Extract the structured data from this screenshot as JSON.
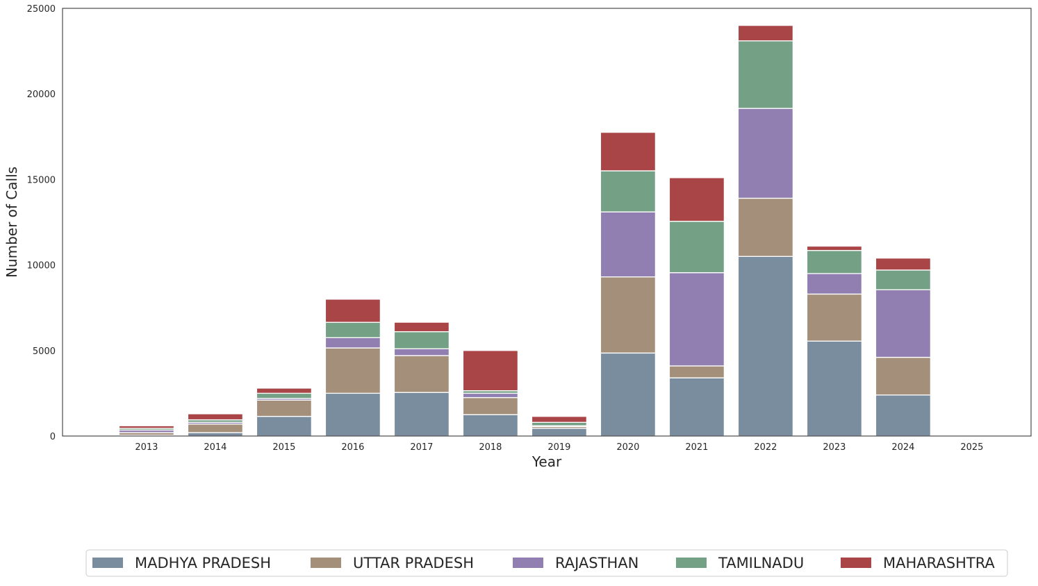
{
  "chart_data": {
    "type": "bar",
    "stacked": true,
    "title": "",
    "xlabel": "Year",
    "ylabel": "Number of Calls",
    "ylim": [
      0,
      25000
    ],
    "yticks": [
      0,
      5000,
      10000,
      15000,
      20000,
      25000
    ],
    "grid": false,
    "legend_position": "bottom",
    "categories": [
      "2013",
      "2014",
      "2015",
      "2016",
      "2017",
      "2018",
      "2019",
      "2020",
      "2021",
      "2022",
      "2023",
      "2024",
      "2025"
    ],
    "series": [
      {
        "name": "MADHYA PRADESH",
        "color": "#7a8d9f",
        "values": [
          50,
          200,
          1150,
          2500,
          2550,
          1250,
          450,
          4850,
          3400,
          10500,
          5550,
          2400,
          0
        ]
      },
      {
        "name": "UTTAR PRADESH",
        "color": "#a48f7a",
        "values": [
          150,
          500,
          950,
          2650,
          2150,
          1000,
          100,
          4450,
          700,
          3400,
          2750,
          2200,
          0
        ]
      },
      {
        "name": "RAJASTHAN",
        "color": "#917fb2",
        "values": [
          150,
          100,
          100,
          600,
          400,
          250,
          50,
          3800,
          5450,
          5250,
          1200,
          3950,
          0
        ]
      },
      {
        "name": "TAMILNADU",
        "color": "#74a085",
        "values": [
          100,
          150,
          300,
          900,
          1000,
          150,
          200,
          2400,
          3000,
          3950,
          1350,
          1150,
          0
        ]
      },
      {
        "name": "MAHARASHTRA",
        "color": "#a94447",
        "values": [
          150,
          350,
          300,
          1350,
          550,
          2350,
          350,
          2250,
          2550,
          900,
          250,
          700,
          0
        ]
      }
    ]
  }
}
